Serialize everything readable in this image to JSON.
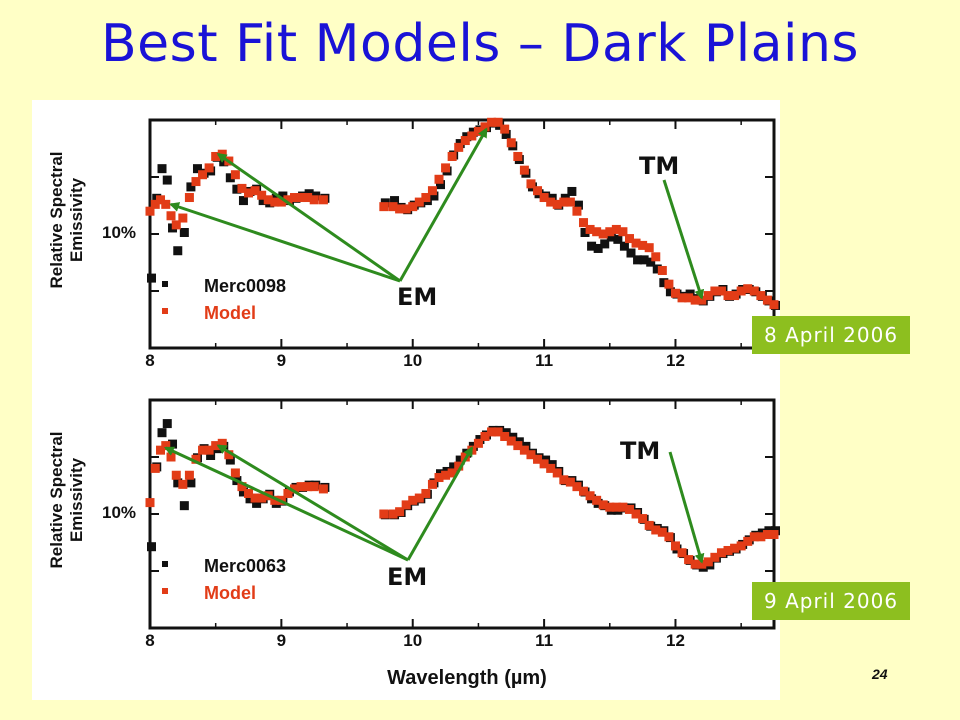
{
  "slide": {
    "title": "Best Fit Models – Dark Plains",
    "page_number": "24",
    "date_badges": [
      "8 April 2006",
      "9 April 2006"
    ]
  },
  "colors": {
    "background": "#ffffc6",
    "title": "#1a13d6",
    "observed": "#111111",
    "model": "#e23c17",
    "arrow": "#2e8b1e",
    "badge": "#8dbf1f"
  },
  "chart_data": [
    {
      "type": "scatter",
      "ylabel": "Relative Spectral Emissivity",
      "scale_label": "10%",
      "xlabel": "",
      "xlim": [
        8.0,
        12.75
      ],
      "ylim": [
        0,
        10
      ],
      "xticks": [
        "8",
        "9",
        "10",
        "11",
        "12"
      ],
      "gap": [
        9.32,
        9.78
      ],
      "series": [
        {
          "name": "Merc0098",
          "x": [
            8.0,
            8.04,
            8.08,
            8.12,
            8.16,
            8.2,
            8.25,
            8.3,
            8.35,
            8.4,
            8.45,
            8.5,
            8.55,
            8.6,
            8.65,
            8.7,
            8.75,
            8.8,
            8.85,
            8.9,
            8.95,
            9.0,
            9.05,
            9.1,
            9.15,
            9.2,
            9.25,
            9.32,
            9.78,
            9.85,
            9.9,
            9.95,
            10.0,
            10.05,
            10.1,
            10.15,
            10.2,
            10.25,
            10.3,
            10.35,
            10.4,
            10.45,
            10.5,
            10.55,
            10.6,
            10.65,
            10.7,
            10.75,
            10.8,
            10.85,
            10.9,
            10.95,
            11.0,
            11.05,
            11.1,
            11.15,
            11.2,
            11.25,
            11.3,
            11.35,
            11.4,
            11.45,
            11.5,
            11.55,
            11.6,
            11.65,
            11.7,
            11.75,
            11.8,
            11.85,
            11.9,
            11.95,
            12.0,
            12.05,
            12.1,
            12.15,
            12.2,
            12.25,
            12.3,
            12.35,
            12.4,
            12.45,
            12.5,
            12.55,
            12.6,
            12.65,
            12.7,
            12.75
          ],
          "y": [
            3.0,
            6.5,
            7.8,
            7.3,
            5.2,
            4.2,
            5.0,
            7.0,
            7.8,
            7.6,
            7.7,
            8.3,
            8.1,
            7.4,
            6.9,
            6.4,
            6.8,
            6.9,
            6.4,
            6.3,
            6.5,
            6.6,
            6.4,
            6.5,
            6.6,
            6.7,
            6.6,
            6.5,
            6.3,
            6.4,
            6.1,
            6.0,
            6.2,
            6.3,
            6.4,
            6.6,
            7.1,
            7.7,
            8.4,
            8.9,
            9.2,
            9.4,
            9.5,
            9.6,
            9.8,
            9.7,
            9.3,
            8.8,
            8.2,
            7.6,
            7.0,
            6.7,
            6.6,
            6.5,
            6.2,
            6.5,
            6.8,
            6.2,
            5.0,
            4.4,
            4.3,
            4.5,
            4.8,
            4.7,
            4.4,
            4.1,
            3.8,
            3.8,
            3.7,
            3.4,
            2.8,
            2.4,
            2.3,
            2.2,
            2.3,
            2.1,
            2.0,
            2.2,
            2.4,
            2.5,
            2.2,
            2.3,
            2.5,
            2.5,
            2.4,
            2.2,
            2.0,
            1.8
          ]
        },
        {
          "name": "Model",
          "x": [
            8.0,
            8.04,
            8.08,
            8.12,
            8.16,
            8.2,
            8.25,
            8.3,
            8.35,
            8.4,
            8.45,
            8.5,
            8.55,
            8.6,
            8.65,
            8.7,
            8.75,
            8.8,
            8.85,
            8.9,
            8.95,
            9.0,
            9.05,
            9.1,
            9.15,
            9.2,
            9.25,
            9.32,
            9.78,
            9.85,
            9.9,
            9.95,
            10.0,
            10.05,
            10.1,
            10.15,
            10.2,
            10.25,
            10.3,
            10.35,
            10.4,
            10.45,
            10.5,
            10.55,
            10.6,
            10.65,
            10.7,
            10.75,
            10.8,
            10.85,
            10.9,
            10.95,
            11.0,
            11.05,
            11.1,
            11.15,
            11.2,
            11.25,
            11.3,
            11.35,
            11.4,
            11.45,
            11.5,
            11.55,
            11.6,
            11.65,
            11.7,
            11.75,
            11.8,
            11.85,
            11.9,
            11.95,
            12.0,
            12.05,
            12.1,
            12.15,
            12.2,
            12.25,
            12.3,
            12.35,
            12.4,
            12.45,
            12.5,
            12.55,
            12.6,
            12.65,
            12.7,
            12.75
          ],
          "y": [
            6.0,
            6.3,
            6.5,
            6.3,
            5.8,
            5.4,
            5.7,
            6.6,
            7.3,
            7.6,
            7.9,
            8.4,
            8.5,
            8.2,
            7.6,
            7.0,
            6.8,
            6.9,
            6.7,
            6.5,
            6.4,
            6.4,
            6.5,
            6.6,
            6.6,
            6.6,
            6.5,
            6.5,
            6.2,
            6.2,
            6.1,
            6.1,
            6.2,
            6.4,
            6.6,
            6.9,
            7.4,
            7.9,
            8.4,
            8.8,
            9.1,
            9.3,
            9.5,
            9.7,
            9.9,
            9.9,
            9.6,
            9.0,
            8.4,
            7.8,
            7.2,
            6.9,
            6.6,
            6.4,
            6.3,
            6.4,
            6.4,
            6.0,
            5.5,
            5.2,
            5.1,
            5.0,
            5.1,
            5.2,
            5.1,
            4.8,
            4.6,
            4.5,
            4.4,
            4.0,
            3.4,
            2.8,
            2.4,
            2.2,
            2.2,
            2.1,
            2.1,
            2.3,
            2.5,
            2.5,
            2.3,
            2.3,
            2.5,
            2.6,
            2.5,
            2.3,
            2.1,
            1.9
          ]
        }
      ],
      "annotations": [
        "EM",
        "TM"
      ]
    },
    {
      "type": "scatter",
      "ylabel": "Relative Spectral Emissivity",
      "scale_label": "10%",
      "xlabel": "Wavelength (µm)",
      "xlim": [
        8.0,
        12.75
      ],
      "ylim": [
        0,
        10
      ],
      "xticks": [
        "8",
        "9",
        "10",
        "11",
        "12"
      ],
      "gap": [
        9.32,
        9.78
      ],
      "series": [
        {
          "name": "Merc0063",
          "x": [
            8.0,
            8.04,
            8.08,
            8.12,
            8.16,
            8.2,
            8.25,
            8.3,
            8.35,
            8.4,
            8.45,
            8.5,
            8.55,
            8.6,
            8.65,
            8.7,
            8.75,
            8.8,
            8.85,
            8.9,
            8.95,
            9.0,
            9.05,
            9.1,
            9.15,
            9.2,
            9.25,
            9.32,
            9.78,
            9.85,
            9.9,
            9.95,
            10.0,
            10.05,
            10.1,
            10.15,
            10.2,
            10.25,
            10.3,
            10.35,
            10.4,
            10.45,
            10.5,
            10.55,
            10.6,
            10.65,
            10.7,
            10.75,
            10.8,
            10.85,
            10.9,
            10.95,
            11.0,
            11.05,
            11.1,
            11.15,
            11.2,
            11.25,
            11.3,
            11.35,
            11.4,
            11.45,
            11.5,
            11.55,
            11.6,
            11.65,
            11.7,
            11.75,
            11.8,
            11.85,
            11.9,
            11.95,
            12.0,
            12.05,
            12.1,
            12.15,
            12.2,
            12.25,
            12.3,
            12.35,
            12.4,
            12.45,
            12.5,
            12.55,
            12.6,
            12.65,
            12.7,
            12.75
          ],
          "y": [
            3.5,
            7.0,
            8.5,
            8.9,
            8.0,
            6.3,
            5.3,
            6.3,
            7.4,
            7.8,
            7.5,
            7.8,
            7.9,
            7.3,
            6.4,
            5.9,
            5.6,
            5.4,
            5.6,
            5.8,
            5.4,
            5.5,
            5.9,
            6.1,
            6.1,
            6.2,
            6.2,
            6.1,
            4.9,
            4.9,
            5.0,
            5.3,
            5.5,
            5.6,
            5.8,
            6.3,
            6.7,
            6.8,
            7.0,
            7.3,
            7.6,
            7.9,
            8.2,
            8.4,
            8.6,
            8.6,
            8.5,
            8.3,
            8.1,
            7.9,
            7.6,
            7.4,
            7.3,
            7.1,
            6.8,
            6.4,
            6.4,
            6.2,
            5.9,
            5.6,
            5.4,
            5.3,
            5.1,
            5.1,
            5.2,
            5.2,
            5.0,
            4.7,
            4.4,
            4.3,
            4.2,
            3.9,
            3.4,
            3.2,
            2.9,
            2.7,
            2.6,
            2.7,
            3.0,
            3.2,
            3.3,
            3.4,
            3.6,
            3.8,
            4.0,
            4.1,
            4.2,
            4.2
          ]
        },
        {
          "name": "Model",
          "x": [
            8.0,
            8.04,
            8.08,
            8.12,
            8.16,
            8.2,
            8.25,
            8.3,
            8.35,
            8.4,
            8.45,
            8.5,
            8.55,
            8.6,
            8.65,
            8.7,
            8.75,
            8.8,
            8.85,
            8.9,
            8.95,
            9.0,
            9.05,
            9.1,
            9.15,
            9.2,
            9.25,
            9.32,
            9.78,
            9.85,
            9.9,
            9.95,
            10.0,
            10.05,
            10.1,
            10.15,
            10.2,
            10.25,
            10.3,
            10.35,
            10.4,
            10.45,
            10.5,
            10.55,
            10.6,
            10.65,
            10.7,
            10.75,
            10.8,
            10.85,
            10.9,
            10.95,
            11.0,
            11.05,
            11.1,
            11.15,
            11.2,
            11.25,
            11.3,
            11.35,
            11.4,
            11.45,
            11.5,
            11.55,
            11.6,
            11.65,
            11.7,
            11.75,
            11.8,
            11.85,
            11.9,
            11.95,
            12.0,
            12.05,
            12.1,
            12.15,
            12.2,
            12.25,
            12.3,
            12.35,
            12.4,
            12.45,
            12.5,
            12.55,
            12.6,
            12.65,
            12.7,
            12.75
          ],
          "y": [
            5.5,
            7.0,
            7.8,
            8.0,
            7.5,
            6.7,
            6.3,
            6.7,
            7.4,
            7.8,
            7.8,
            8.0,
            8.1,
            7.6,
            6.8,
            6.2,
            5.9,
            5.7,
            5.7,
            5.8,
            5.6,
            5.6,
            5.9,
            6.1,
            6.2,
            6.2,
            6.2,
            6.1,
            5.0,
            5.0,
            5.1,
            5.4,
            5.6,
            5.7,
            5.9,
            6.3,
            6.6,
            6.7,
            6.8,
            7.1,
            7.5,
            7.8,
            8.1,
            8.4,
            8.6,
            8.6,
            8.4,
            8.2,
            8.0,
            7.8,
            7.6,
            7.4,
            7.2,
            7.0,
            6.8,
            6.5,
            6.4,
            6.2,
            6.0,
            5.8,
            5.6,
            5.4,
            5.3,
            5.3,
            5.3,
            5.2,
            5.0,
            4.8,
            4.5,
            4.3,
            4.2,
            4.0,
            3.6,
            3.3,
            3.0,
            2.8,
            2.8,
            2.9,
            3.1,
            3.3,
            3.4,
            3.5,
            3.6,
            3.8,
            4.0,
            4.0,
            4.1,
            4.1
          ]
        }
      ],
      "annotations": [
        "EM",
        "TM"
      ]
    }
  ]
}
